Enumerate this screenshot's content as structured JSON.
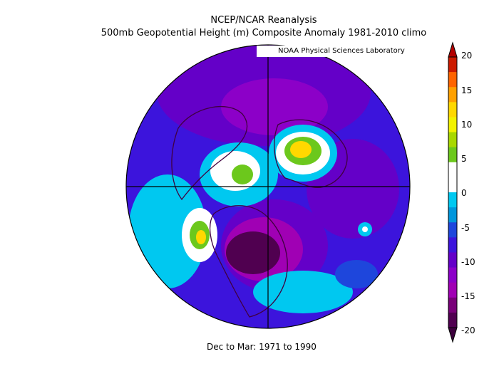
{
  "title_line1": "NCEP/NCAR Reanalysis",
  "title_line2": "500mb Geopotential Height (m) Composite Anomaly 1981-2010 climo",
  "credit": "NOAA Physical Sciences Laboratory",
  "period": "Dec to Mar: 1971 to 1990",
  "colorbar": {
    "ticks": [
      "20",
      "15",
      "10",
      "5",
      "0",
      "-5",
      "-10",
      "-15",
      "-20"
    ],
    "colors": [
      "#cc1a00",
      "#ff6400",
      "#ffa000",
      "#ffd800",
      "#f2f200",
      "#a8d800",
      "#6cc81c",
      "#ffffff",
      "#ffffff",
      "#00c8f0",
      "#0096dc",
      "#1e46dc",
      "#3c14dc",
      "#6400c8",
      "#8c00c8",
      "#a000b4",
      "#780078",
      "#500050"
    ]
  }
}
